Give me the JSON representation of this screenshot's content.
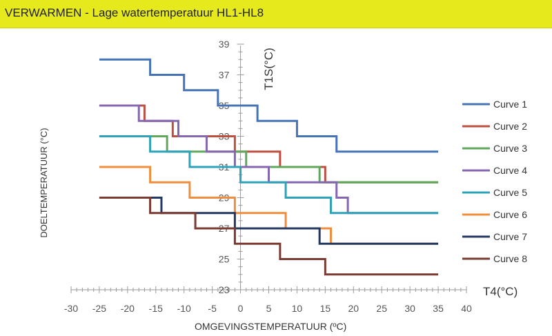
{
  "header": {
    "title": "VERWARMEN - Lage watertemperatuur HL1-HL8"
  },
  "chart_data": {
    "type": "line",
    "step": true,
    "xlabel": "OMGEVINGSTEMPERATUUR (ºC)",
    "ylabel": "DOELTEMPERATUUR (°C)",
    "x_axis_name": "T4(°C)",
    "y_axis_name": "T1S(°C)",
    "xlim": [
      -30,
      40
    ],
    "ylim": [
      23,
      39
    ],
    "x_ticks": [
      "-30",
      "-25",
      "-20",
      "-15",
      "-10",
      "-5",
      "0",
      "5",
      "10",
      "15",
      "20",
      "25",
      "30",
      "35",
      "40"
    ],
    "y_ticks": [
      "39",
      "37",
      "35",
      "33",
      "31",
      "29",
      "27",
      "25",
      "23"
    ],
    "legend_position": "right",
    "series": [
      {
        "name": "Curve 1",
        "color": "#4573b5",
        "steps": [
          [
            -25,
            38
          ],
          [
            -16,
            37
          ],
          [
            -10,
            36
          ],
          [
            -4,
            35
          ],
          [
            3,
            34
          ],
          [
            10,
            33
          ],
          [
            17,
            32
          ],
          [
            35,
            32
          ]
        ]
      },
      {
        "name": "Curve 2",
        "color": "#bd4f40",
        "steps": [
          [
            -25,
            35
          ],
          [
            -17,
            34
          ],
          [
            -12,
            33
          ],
          [
            -6,
            33
          ],
          [
            -1,
            32
          ],
          [
            3,
            32
          ],
          [
            7,
            31
          ],
          [
            15,
            30
          ],
          [
            16,
            30
          ],
          [
            35,
            30
          ]
        ]
      },
      {
        "name": "Curve 3",
        "color": "#5fa85b",
        "steps": [
          [
            -25,
            33
          ],
          [
            -17,
            33
          ],
          [
            -13,
            32
          ],
          [
            -5,
            32
          ],
          [
            1,
            31
          ],
          [
            14,
            30
          ],
          [
            35,
            30
          ]
        ]
      },
      {
        "name": "Curve 4",
        "color": "#8566b0",
        "steps": [
          [
            -25,
            35
          ],
          [
            -18,
            34
          ],
          [
            -11,
            33
          ],
          [
            -6,
            32
          ],
          [
            -1,
            31
          ],
          [
            5,
            30
          ],
          [
            11,
            30
          ],
          [
            17,
            29
          ],
          [
            18,
            29
          ],
          [
            19,
            28
          ],
          [
            35,
            28
          ]
        ]
      },
      {
        "name": "Curve 5",
        "color": "#2ea2b8",
        "steps": [
          [
            -25,
            33
          ],
          [
            -16,
            32
          ],
          [
            -9,
            31
          ],
          [
            0,
            30
          ],
          [
            8,
            29
          ],
          [
            16,
            28
          ],
          [
            35,
            28
          ]
        ]
      },
      {
        "name": "Curve 6",
        "color": "#f08e3e",
        "steps": [
          [
            -25,
            31
          ],
          [
            -16,
            30
          ],
          [
            -9,
            29
          ],
          [
            -3,
            29
          ],
          [
            -1,
            28
          ],
          [
            8,
            27
          ],
          [
            15,
            27
          ],
          [
            16,
            26
          ],
          [
            35,
            26
          ]
        ]
      },
      {
        "name": "Curve 7",
        "color": "#233760",
        "steps": [
          [
            -25,
            29
          ],
          [
            -14,
            28
          ],
          [
            -5,
            28
          ],
          [
            -1,
            27
          ],
          [
            14,
            26
          ],
          [
            35,
            26
          ]
        ]
      },
      {
        "name": "Curve 8",
        "color": "#7a3a31",
        "steps": [
          [
            -25,
            29
          ],
          [
            -16,
            28
          ],
          [
            -8,
            27
          ],
          [
            -4,
            27
          ],
          [
            -1,
            26
          ],
          [
            7,
            25
          ],
          [
            15,
            24
          ],
          [
            35,
            24
          ]
        ]
      }
    ]
  }
}
